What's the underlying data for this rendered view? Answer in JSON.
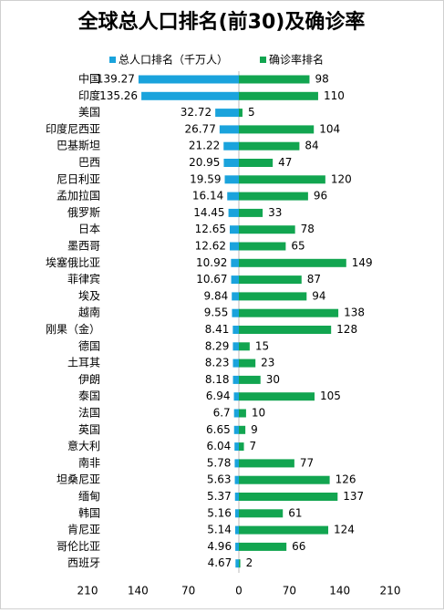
{
  "chart_data": {
    "type": "butterfly-bar",
    "title": "全球总人口排名(前30)及确诊率",
    "categories": [
      "中国",
      "印度",
      "美国",
      "印度尼西亚",
      "巴基斯坦",
      "巴西",
      "尼日利亚",
      "孟加拉国",
      "俄罗斯",
      "日本",
      "墨西哥",
      "埃塞俄比亚",
      "菲律宾",
      "埃及",
      "越南",
      "刚果（金）",
      "德国",
      "土耳其",
      "伊朗",
      "泰国",
      "法国",
      "英国",
      "意大利",
      "南非",
      "坦桑尼亚",
      "缅甸",
      "韩国",
      "肯尼亚",
      "哥伦比亚",
      "西班牙"
    ],
    "series": [
      {
        "name": "总人口排名（千万人）",
        "color": "#1aa3dc",
        "direction": "left",
        "values": [
          139.27,
          135.26,
          32.72,
          26.77,
          21.22,
          20.95,
          19.59,
          16.14,
          14.45,
          12.65,
          12.62,
          10.92,
          10.67,
          9.84,
          9.55,
          8.41,
          8.29,
          8.23,
          8.18,
          6.94,
          6.7,
          6.65,
          6.04,
          5.78,
          5.63,
          5.37,
          5.16,
          5.14,
          4.96,
          4.67
        ]
      },
      {
        "name": "确诊率排名",
        "color": "#12a550",
        "direction": "right",
        "values": [
          98,
          110,
          5,
          104,
          84,
          47,
          120,
          96,
          33,
          78,
          65,
          149,
          87,
          94,
          138,
          128,
          15,
          23,
          30,
          105,
          10,
          9,
          7,
          77,
          126,
          137,
          61,
          124,
          66,
          2
        ]
      }
    ],
    "xlim": [
      0,
      210
    ],
    "xticks": [
      0,
      70,
      140,
      210
    ]
  }
}
